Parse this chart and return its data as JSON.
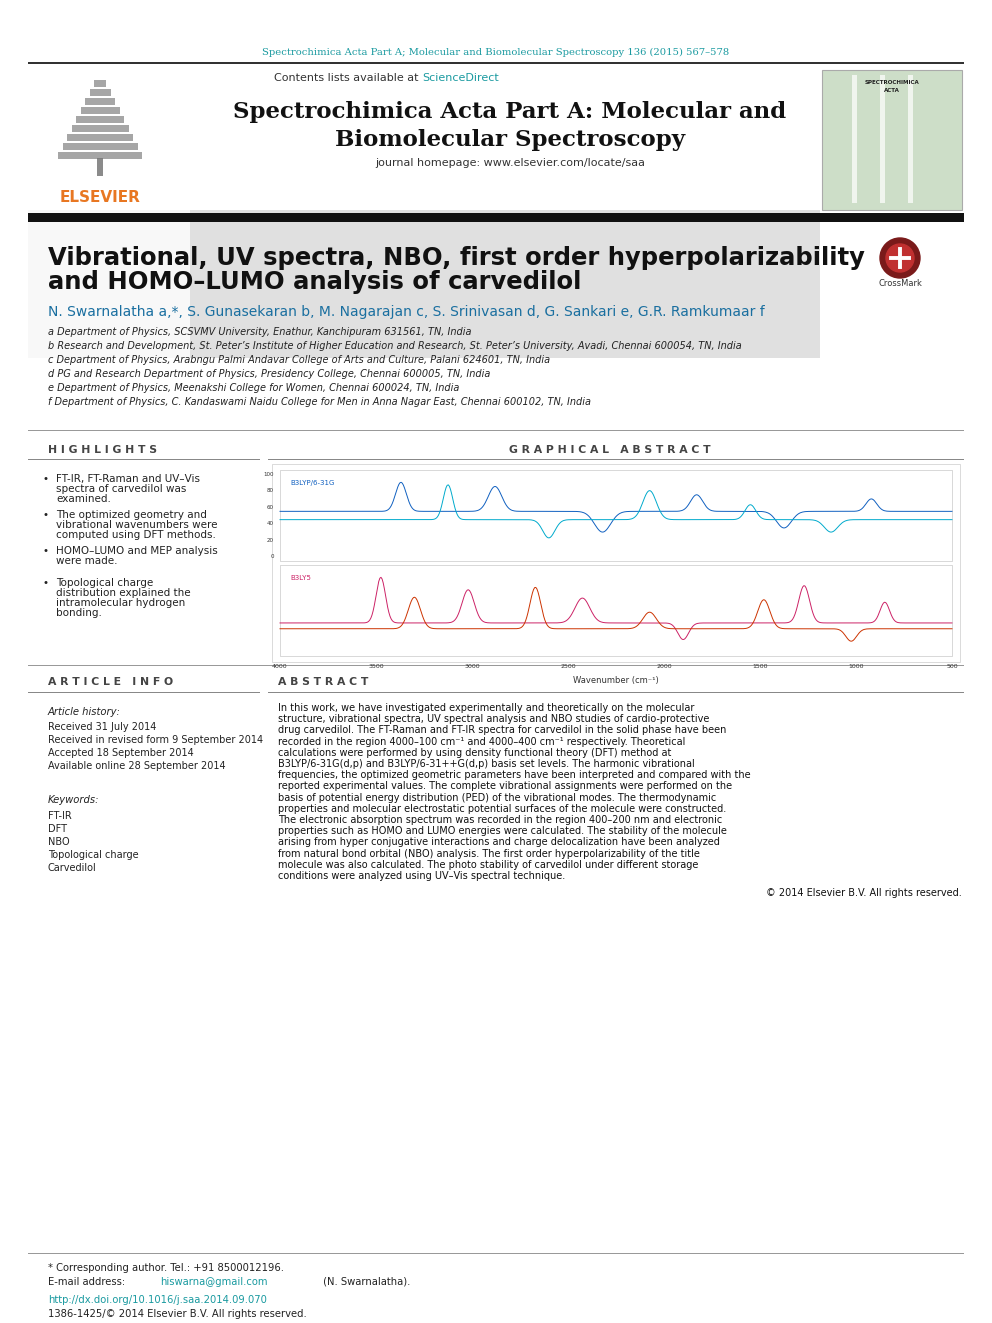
{
  "top_journal_line": "Spectrochimica Acta Part A; Molecular and Biomolecular Spectroscopy 136 (2015) 567–578",
  "journal_title_line1": "Spectrochimica Acta Part A: Molecular and",
  "journal_title_line2": "Biomolecular Spectroscopy",
  "contents_line": "Contents lists available at",
  "sciencedirect": "ScienceDirect",
  "journal_homepage": "journal homepage: www.elsevier.com/locate/saa",
  "article_title_line1": "Vibrational, UV spectra, NBO, first order hyperpolarizability",
  "article_title_line2": "and HOMO–LUMO analysis of carvedilol",
  "authors_text": "N. Swarnalatha a,*, S. Gunasekaran b, M. Nagarajan c, S. Srinivasan d, G. Sankari e, G.R. Ramkumaar f",
  "affil_a": "a Department of Physics, SCSVMV University, Enathur, Kanchipuram 631561, TN, India",
  "affil_b": "b Research and Development, St. Peter’s Institute of Higher Education and Research, St. Peter’s University, Avadi, Chennai 600054, TN, India",
  "affil_c": "c Department of Physics, Arabngu Palmi Andavar College of Arts and Culture, Palani 624601, TN, India",
  "affil_d": "d PG and Research Department of Physics, Presidency College, Chennai 600005, TN, India",
  "affil_e": "e Department of Physics, Meenakshi College for Women, Chennai 600024, TN, India",
  "affil_f": "f Department of Physics, C. Kandaswami Naidu College for Men in Anna Nagar East, Chennai 600102, TN, India",
  "highlights_title": "H I G H L I G H T S",
  "highlights": [
    "FT-IR, FT-Raman and UV–Vis spectra of carvedilol was examined.",
    "The optimized geometry and vibrational wavenumbers were computed using DFT methods.",
    "HOMO–LUMO and MEP analysis were made.",
    "Topological charge distribution explained the intramolecular hydrogen bonding."
  ],
  "graphical_abstract_title": "G R A P H I C A L   A B S T R A C T",
  "article_info_title": "A R T I C L E   I N F O",
  "article_history_title": "Article history:",
  "received": "Received 31 July 2014",
  "revised": "Received in revised form 9 September 2014",
  "accepted": "Accepted 18 September 2014",
  "available": "Available online 28 September 2014",
  "keywords_title": "Keywords:",
  "keywords": [
    "FT-IR",
    "DFT",
    "NBO",
    "Topological charge",
    "Carvedilol"
  ],
  "abstract_title": "A B S T R A C T",
  "abstract_text": "In this work, we have investigated experimentally and theoretically on the molecular structure, vibrational spectra, UV spectral analysis and NBO studies of cardio-protective drug carvedilol. The FT-Raman and FT-IR spectra for carvedilol in the solid phase have been recorded in the region 4000–100 cm⁻¹ and 4000–400 cm⁻¹ respectively. Theoretical calculations were performed by using density functional theory (DFT) method at B3LYP/6-31G(d,p) and B3LYP/6-31++G(d,p) basis set levels. The harmonic vibrational frequencies, the optimized geometric parameters have been interpreted and compared with the reported experimental values. The complete vibrational assignments were performed on the basis of potential energy distribution (PED) of the vibrational modes. The thermodynamic properties and molecular electrostatic potential surfaces of the molecule were constructed. The electronic absorption spectrum was recorded in the region 400–200 nm and electronic properties such as HOMO and LUMO energies were calculated. The stability of the molecule arising from hyper conjugative interactions and charge delocalization have been analyzed from natural bond orbital (NBO) analysis. The first order hyperpolarizability of the title molecule was also calculated. The photo stability of carvedilol under different storage conditions were analyzed using UV–Vis spectral technique.",
  "copyright": "© 2014 Elsevier B.V. All rights reserved.",
  "footnote1": "* Corresponding author. Tel.: +91 8500012196.",
  "footnote2_pre": "E-mail address: ",
  "footnote2_email": "hiswarna@gmail.com",
  "footnote2_post": " (N. Swarnalatha).",
  "doi": "http://dx.doi.org/10.1016/j.saa.2014.09.070",
  "issn": "1386-1425/© 2014 Elsevier B.V. All rights reserved.",
  "bg_color": "#ffffff",
  "header_bg": "#e0e0e0",
  "teal_color": "#1a9aa0",
  "orange_color": "#e87722",
  "black_bar_color": "#111111",
  "highlight_bullet": "•",
  "crossmark_outer": "#7a1a1a",
  "crossmark_inner": "#c03030"
}
